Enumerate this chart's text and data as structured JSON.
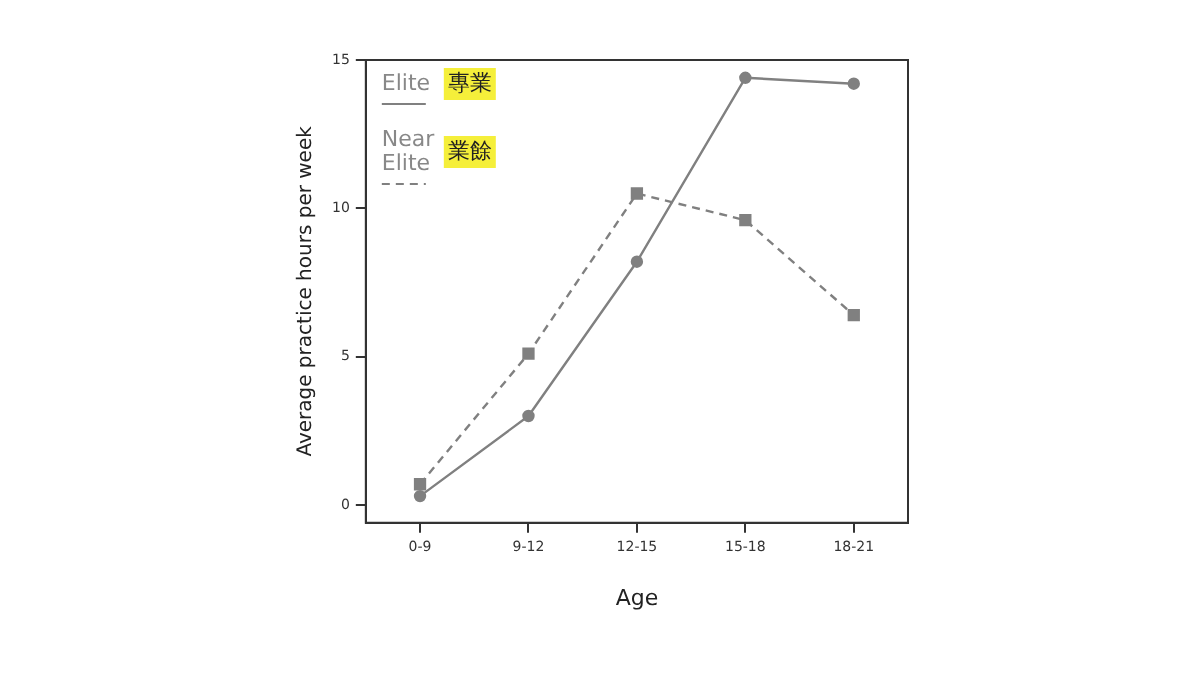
{
  "chart_data": {
    "type": "line",
    "xlabel": "Age",
    "ylabel": "Average practice hours per week",
    "categories": [
      "0-9",
      "9-12",
      "12-15",
      "15-18",
      "18-21"
    ],
    "series": [
      {
        "name": "Elite",
        "color": "#808080",
        "marker": "circle",
        "line_style": "solid",
        "values": [
          0.3,
          3.0,
          8.2,
          14.4,
          14.2
        ]
      },
      {
        "name": "Near Elite",
        "color": "#808080",
        "marker": "square",
        "line_style": "dashed",
        "values": [
          0.7,
          5.1,
          10.5,
          9.6,
          6.4
        ]
      }
    ],
    "ylim": [
      -0.6,
      15
    ],
    "yticks": [
      0,
      5,
      10,
      15
    ],
    "grid": false,
    "legend": "top left",
    "annotations": [
      "專業",
      "業餘"
    ]
  }
}
